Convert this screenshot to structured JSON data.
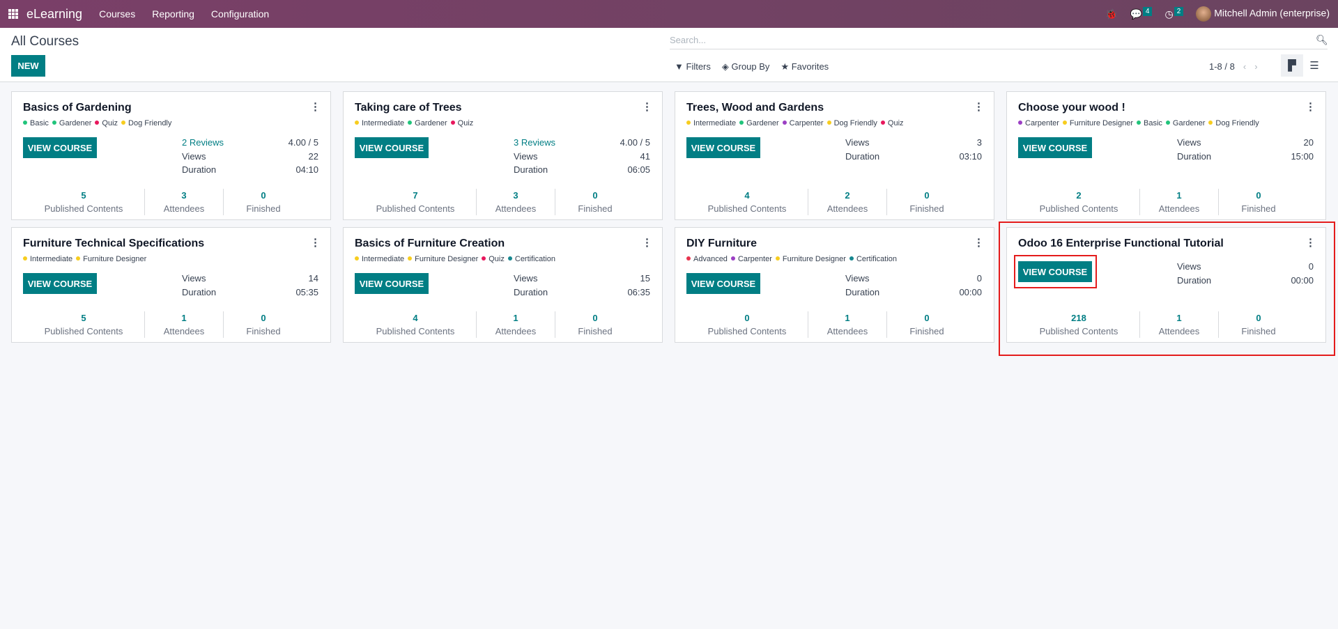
{
  "navbar": {
    "app": "eLearning",
    "menu": [
      "Courses",
      "Reporting",
      "Configuration"
    ],
    "messages_count": "4",
    "activities_count": "2",
    "user": "Mitchell Admin (enterprise)"
  },
  "control_panel": {
    "title": "All Courses",
    "new_label": "NEW",
    "search_placeholder": "Search...",
    "filters": "Filters",
    "group_by": "Group By",
    "favorites": "Favorites",
    "pager": "1-8 / 8"
  },
  "labels": {
    "view_course": "VIEW COURSE",
    "views": "Views",
    "duration": "Duration",
    "published": "Published Contents",
    "attendees": "Attendees",
    "finished": "Finished"
  },
  "tag_colors": {
    "Basic": "#21c47b",
    "Gardener": "#21c47b",
    "Quiz": "#e8175d",
    "Dog Friendly": "#f7cd1f",
    "Intermediate": "#f7cd1f",
    "Carpenter": "#9b3fc4",
    "Furniture Designer": "#f7cd1f",
    "Certification": "#17878f",
    "Advanced": "#e8344e"
  },
  "courses": [
    {
      "title": "Basics of Gardening",
      "tags": [
        "Basic",
        "Gardener",
        "Quiz",
        "Dog Friendly"
      ],
      "reviews": "2 Reviews",
      "rating": "4.00 / 5",
      "views": "22",
      "duration": "04:10",
      "published": "5",
      "attendees": "3",
      "finished": "0"
    },
    {
      "title": "Taking care of Trees",
      "tags": [
        "Intermediate",
        "Gardener",
        "Quiz"
      ],
      "reviews": "3 Reviews",
      "rating": "4.00 / 5",
      "views": "41",
      "duration": "06:05",
      "published": "7",
      "attendees": "3",
      "finished": "0"
    },
    {
      "title": "Trees, Wood and Gardens",
      "tags": [
        "Intermediate",
        "Gardener",
        "Carpenter",
        "Dog Friendly",
        "Quiz"
      ],
      "views": "3",
      "duration": "03:10",
      "published": "4",
      "attendees": "2",
      "finished": "0"
    },
    {
      "title": "Choose your wood !",
      "tags": [
        "Carpenter",
        "Furniture Designer",
        "Basic",
        "Gardener",
        "Dog Friendly"
      ],
      "views": "20",
      "duration": "15:00",
      "published": "2",
      "attendees": "1",
      "finished": "0"
    },
    {
      "title": "Furniture Technical Specifications",
      "tags": [
        "Intermediate",
        "Furniture Designer"
      ],
      "views": "14",
      "duration": "05:35",
      "published": "5",
      "attendees": "1",
      "finished": "0"
    },
    {
      "title": "Basics of Furniture Creation",
      "tags": [
        "Intermediate",
        "Furniture Designer",
        "Quiz",
        "Certification"
      ],
      "views": "15",
      "duration": "06:35",
      "published": "4",
      "attendees": "1",
      "finished": "0"
    },
    {
      "title": "DIY Furniture",
      "tags": [
        "Advanced",
        "Carpenter",
        "Furniture Designer",
        "Certification"
      ],
      "views": "0",
      "duration": "00:00",
      "published": "0",
      "attendees": "1",
      "finished": "0"
    },
    {
      "title": "Odoo 16 Enterprise Functional Tutorial",
      "tags": [],
      "views": "0",
      "duration": "00:00",
      "published": "218",
      "attendees": "1",
      "finished": "0"
    }
  ]
}
